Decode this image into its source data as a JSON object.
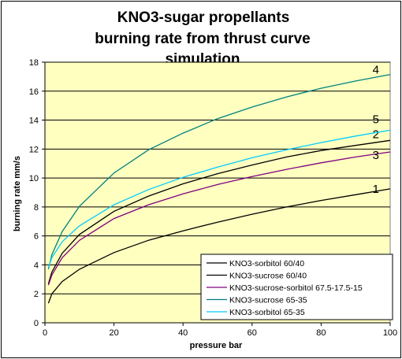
{
  "chart_data": {
    "type": "line",
    "title_lines": [
      "KNO3-sugar  propellants",
      "burning rate from thrust curve",
      "simulation"
    ],
    "xlabel": "pressure bar",
    "ylabel": "burning rate mm/s",
    "xlim": [
      0,
      100
    ],
    "ylim": [
      0,
      18
    ],
    "x_ticks": [
      0,
      20,
      40,
      60,
      80,
      100
    ],
    "y_ticks": [
      0,
      2,
      4,
      6,
      8,
      10,
      12,
      14,
      16,
      18
    ],
    "grid": "horizontal",
    "plot_background": "#ffffc0",
    "legend_position": "bottom-right",
    "series": [
      {
        "name": "KNO3-sorbitol 60/40",
        "label": "1",
        "color": "#000000",
        "x": [
          1,
          2,
          5,
          10,
          20,
          30,
          40,
          50,
          60,
          70,
          80,
          90,
          100
        ],
        "y": [
          1.35,
          2.0,
          2.85,
          3.7,
          4.85,
          5.7,
          6.35,
          6.95,
          7.5,
          8.0,
          8.45,
          8.85,
          9.25
        ]
      },
      {
        "name": "KNO3-sucrose 60/40",
        "label": "2",
        "color": "#000000",
        "x": [
          1,
          2,
          5,
          10,
          20,
          30,
          40,
          50,
          60,
          70,
          80,
          90,
          100
        ],
        "y": [
          2.7,
          3.5,
          4.8,
          6.1,
          7.7,
          8.75,
          9.6,
          10.3,
          10.9,
          11.45,
          11.9,
          12.25,
          12.6
        ]
      },
      {
        "name": "KNO3-sucrose-sorbitol 67.5-17.5-15",
        "label": "3",
        "color": "#800080",
        "x": [
          1,
          2,
          5,
          10,
          20,
          30,
          40,
          50,
          60,
          70,
          80,
          90,
          100
        ],
        "y": [
          2.6,
          3.3,
          4.5,
          5.7,
          7.2,
          8.15,
          8.9,
          9.55,
          10.1,
          10.6,
          11.05,
          11.45,
          11.8
        ]
      },
      {
        "name": "KNO3-sucrose 65-35",
        "label": "4",
        "color": "#008080",
        "x": [
          1,
          2,
          5,
          10,
          20,
          30,
          40,
          50,
          60,
          70,
          80,
          90,
          100
        ],
        "y": [
          3.7,
          4.7,
          6.3,
          8.05,
          10.35,
          11.95,
          13.1,
          14.1,
          14.9,
          15.6,
          16.2,
          16.7,
          17.15
        ]
      },
      {
        "name": "KNO3-sorbitol 65-35",
        "label": "5",
        "color": "#00ccff",
        "x": [
          1,
          2,
          5,
          10,
          20,
          30,
          40,
          50,
          60,
          70,
          80,
          90,
          100
        ],
        "y": [
          3.8,
          4.5,
          5.6,
          6.7,
          8.15,
          9.2,
          10.05,
          10.75,
          11.4,
          11.95,
          12.45,
          12.9,
          13.3
        ]
      }
    ]
  }
}
